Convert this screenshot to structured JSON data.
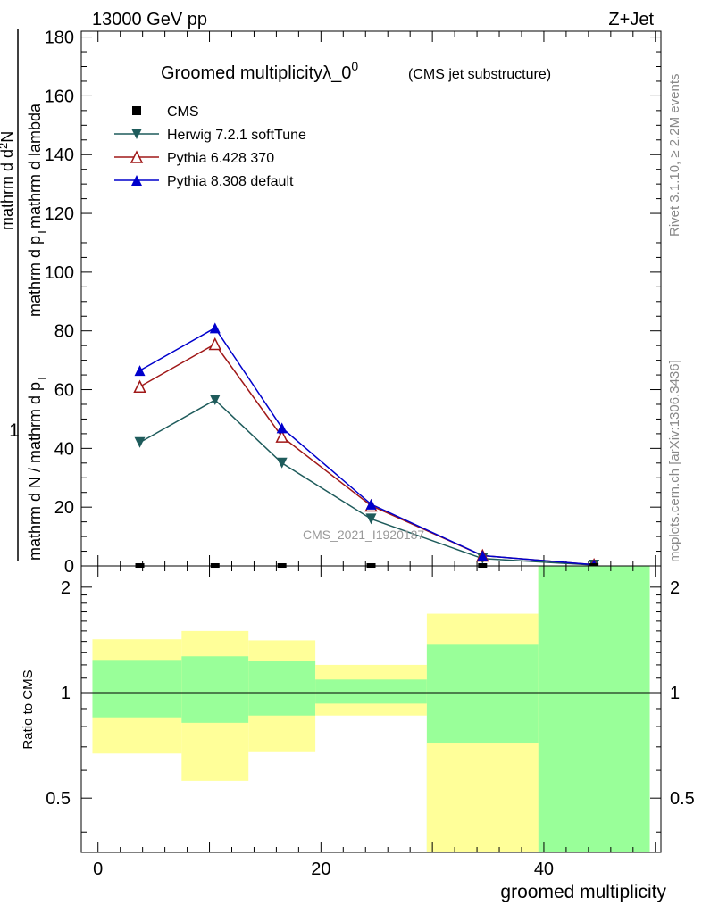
{
  "header": {
    "energy_label": "13000 GeV pp",
    "process_label": "Z+Jet"
  },
  "side": {
    "rivet_label": "Rivet 3.1.10, ≥ 2.2M events",
    "mcplots_label": "mcplots.cern.ch [arXiv:1306.3436]"
  },
  "chart_data": [
    {
      "type": "line",
      "title": "Groomed multiplicityλ_0",
      "title_sup": "0",
      "subtitle": "(CMS jet substructure)",
      "xlabel": "groomed multiplicity",
      "ylabel_top": "1",
      "ylabel_frac_num": "mathrm d",
      "ylabel_frac_den": "mathrm d N / mathrm d p",
      "ylabel_num": "mathrm d",
      "watermark": "CMS_2021_I1920187",
      "xlim": [
        -1.5,
        50.5
      ],
      "ylim": [
        0,
        182
      ],
      "x_ticks": [
        0,
        20,
        40
      ],
      "y_ticks": [
        0,
        20,
        40,
        60,
        80,
        100,
        120,
        140,
        160,
        180
      ],
      "x": [
        3.75,
        10.5,
        16.5,
        24.5,
        34.5,
        44.5
      ],
      "series": [
        {
          "name": "CMS",
          "color": "#000000",
          "marker": "square",
          "values": [
            0.3,
            0.3,
            0.3,
            0.3,
            0.3,
            0.3
          ]
        },
        {
          "name": "Herwig 7.2.1 softTune",
          "color": "#1e5b5b",
          "marker": "triangle-down",
          "values": [
            42,
            56.5,
            35,
            16,
            2.5,
            0.3
          ]
        },
        {
          "name": "Pythia 6.428 370",
          "color": "#a01818",
          "marker": "triangle-up-open",
          "values": [
            61,
            75.5,
            44,
            20.5,
            3.5,
            0.4
          ]
        },
        {
          "name": "Pythia 8.308 default",
          "color": "#0000cc",
          "marker": "triangle-up",
          "values": [
            66.5,
            81,
            47,
            21,
            3.5,
            0.4
          ]
        }
      ]
    },
    {
      "type": "area",
      "ylabel": "Ratio to CMS",
      "xlim": [
        -1.5,
        50.5
      ],
      "ylim": [
        0.35,
        2.3
      ],
      "log_scale_y": true,
      "x_ticks": [
        0,
        20,
        40
      ],
      "y_ticks": [
        0.5,
        1,
        2
      ],
      "reference_line": 1,
      "bands": [
        {
          "x0": -0.5,
          "x1": 7.5,
          "green": [
            0.85,
            1.24
          ],
          "yellow": [
            0.67,
            1.42
          ]
        },
        {
          "x0": 7.5,
          "x1": 13.5,
          "green": [
            0.82,
            1.27
          ],
          "yellow": [
            0.56,
            1.5
          ]
        },
        {
          "x0": 13.5,
          "x1": 19.5,
          "green": [
            0.86,
            1.23
          ],
          "yellow": [
            0.68,
            1.41
          ]
        },
        {
          "x0": 19.5,
          "x1": 29.5,
          "green": [
            0.93,
            1.09
          ],
          "yellow": [
            0.86,
            1.2
          ]
        },
        {
          "x0": 29.5,
          "x1": 39.5,
          "green": [
            0.35,
            1.37
          ],
          "yellow": [
            0.35,
            1.68
          ],
          "green_low_extra": [
            0.35,
            0.72
          ]
        },
        {
          "x0": 39.5,
          "x1": 49.5,
          "green": [
            0.35,
            2.3
          ],
          "yellow": [
            0.35,
            2.3
          ]
        }
      ]
    }
  ]
}
